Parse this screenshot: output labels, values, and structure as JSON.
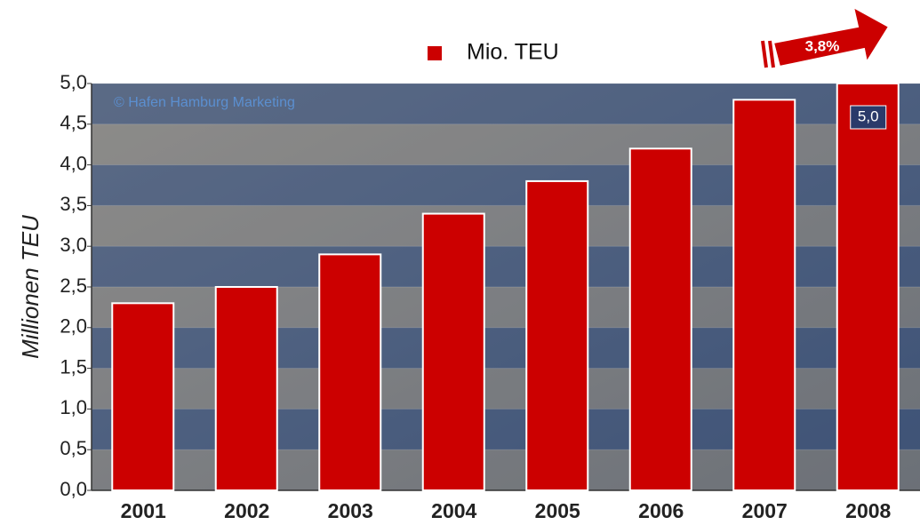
{
  "chart_data": {
    "type": "bar",
    "categories": [
      "2001",
      "2002",
      "2003",
      "2004",
      "2005",
      "2006",
      "2007",
      "2008"
    ],
    "series": [
      {
        "name": "Mio. TEU",
        "color": "#cc0000",
        "values": [
          2.3,
          2.5,
          2.9,
          3.4,
          3.8,
          4.2,
          4.8,
          5.0
        ],
        "value_labels": [
          null,
          null,
          null,
          null,
          null,
          null,
          null,
          "5,0"
        ]
      }
    ],
    "y_label": "Millionen TEU",
    "ylim": [
      0,
      5
    ],
    "yticks": [
      {
        "value": 0,
        "label": "0,0"
      },
      {
        "value": 0.5,
        "label": "0,5"
      },
      {
        "value": 1,
        "label": "1,0"
      },
      {
        "value": 1.5,
        "label": "1,5"
      },
      {
        "value": 2,
        "label": "2,0"
      },
      {
        "value": 2.5,
        "label": "2,5"
      },
      {
        "value": 3,
        "label": "3,0"
      },
      {
        "value": 3.5,
        "label": "3,5"
      },
      {
        "value": 4,
        "label": "4,0"
      },
      {
        "value": 4.5,
        "label": "4,5"
      },
      {
        "value": 5,
        "label": "5,0"
      }
    ],
    "annotations": [
      "© Hafen Hamburg Marketing",
      "3,8%"
    ],
    "grid": true
  }
}
